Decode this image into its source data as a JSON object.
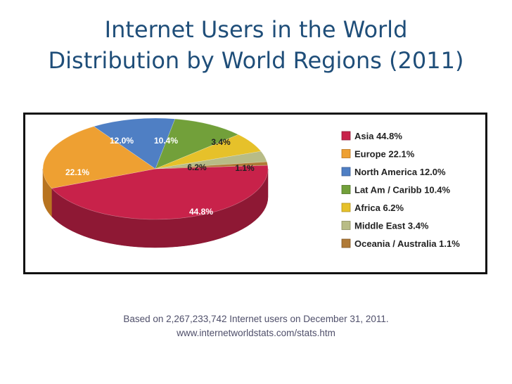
{
  "title": {
    "line1": "Internet Users in the World",
    "line2": "Distribution by World Regions (2011)"
  },
  "footnote": {
    "line1": "Based on 2,267,233,742 Internet users on December 31, 2011.",
    "line2": "www.internetworldstats.com/stats.htm"
  },
  "chart_data": {
    "type": "pie",
    "title": "Internet Users in the World Distribution by World Regions (2011)",
    "unit": "%",
    "slices": [
      {
        "name": "Asia",
        "value": 44.8,
        "label": "44.8%",
        "legend": "Asia  44.8%",
        "color": "#c8224a",
        "side": "#8e1834"
      },
      {
        "name": "Europe",
        "value": 22.1,
        "label": "22.1%",
        "legend": "Europe  22.1%",
        "color": "#eea032",
        "side": "#b87420"
      },
      {
        "name": "North America",
        "value": 12.0,
        "label": "12.0%",
        "legend": "North America  12.0%",
        "color": "#4f7fc4",
        "side": "#375b92"
      },
      {
        "name": "Lat Am / Caribb",
        "value": 10.4,
        "label": "10.4%",
        "legend": "Lat Am / Caribb  10.4%",
        "color": "#72a03a",
        "side": "#4f7428"
      },
      {
        "name": "Africa",
        "value": 6.2,
        "label": "6.2%",
        "legend": "Africa  6.2%",
        "color": "#e6c12a",
        "side": "#b0901c"
      },
      {
        "name": "Middle East",
        "value": 3.4,
        "label": "3.4%",
        "legend": "Middle East  3.4%",
        "color": "#b8bc86",
        "side": "#8a8d60"
      },
      {
        "name": "Oceania / Australia",
        "value": 1.1,
        "label": "1.1%",
        "legend": "Oceania / Australia  1.1%",
        "color": "#b07a36",
        "side": "#7f5624"
      }
    ],
    "legend_position": "right"
  }
}
